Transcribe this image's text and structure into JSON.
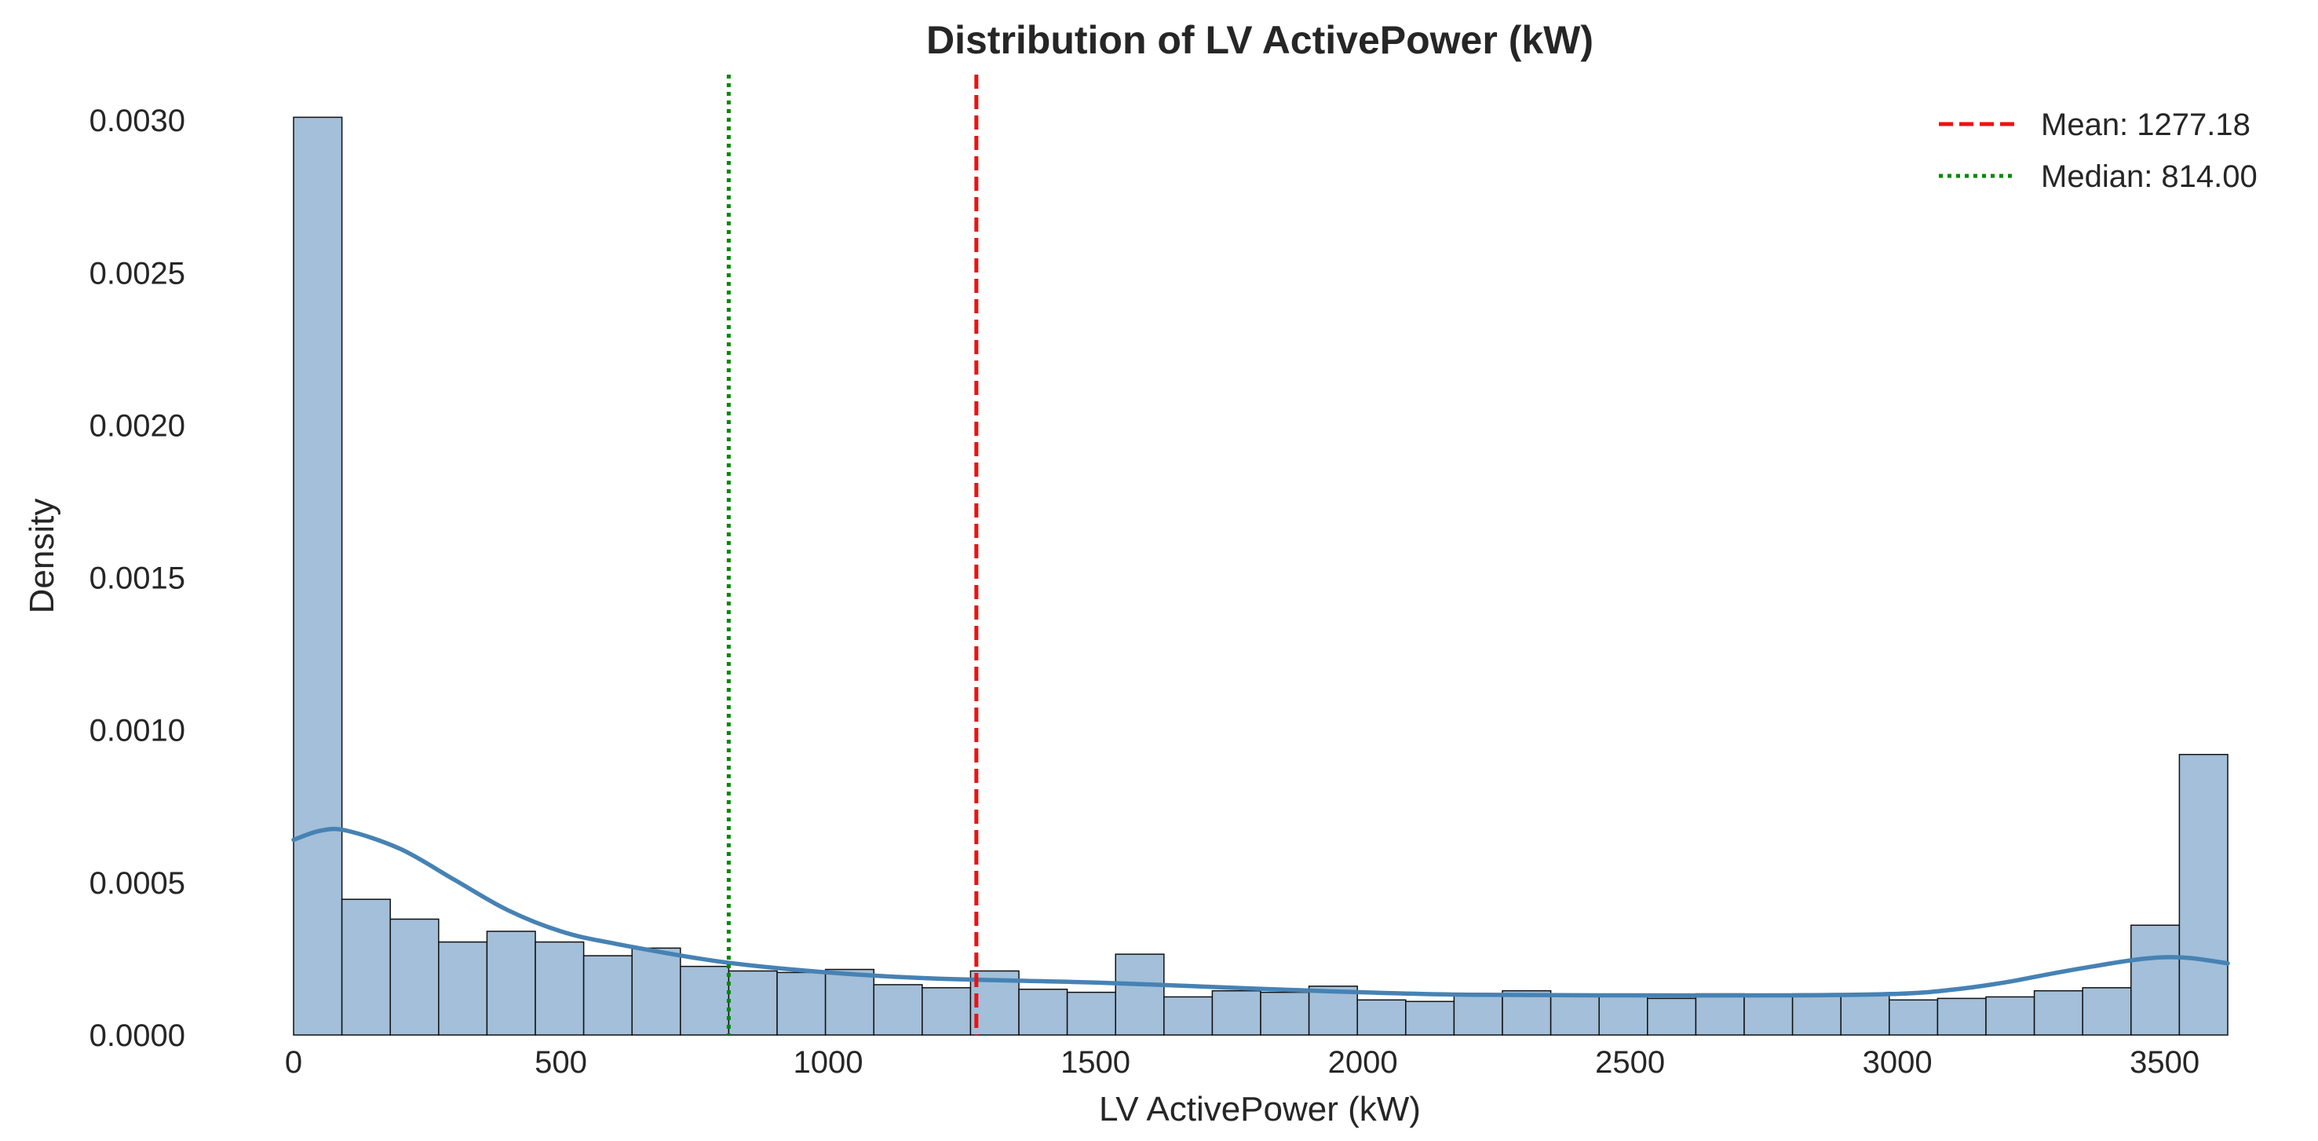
{
  "chart_data": {
    "type": "bar",
    "title": "Distribution of LV ActivePower (kW)",
    "xlabel": "LV ActivePower (kW)",
    "ylabel": "Density",
    "xlim": [
      0,
      3618
    ],
    "ylim": [
      0,
      0.00315
    ],
    "grid": false,
    "legend_position": "top-right",
    "x_ticks": [
      0,
      500,
      1000,
      1500,
      2000,
      2500,
      3000,
      3500
    ],
    "x_tick_labels": [
      "0",
      "500",
      "1000",
      "1500",
      "2000",
      "2500",
      "3000",
      "3500"
    ],
    "y_ticks": [
      0,
      0.0005,
      0.001,
      0.0015,
      0.002,
      0.0025,
      0.003
    ],
    "y_tick_labels": [
      "0.0000",
      "0.0005",
      "0.0010",
      "0.0015",
      "0.0020",
      "0.0025",
      "0.0030"
    ],
    "bin_start": 0,
    "bin_width": 90.45,
    "bin_values": [
      0.00301,
      0.000445,
      0.00038,
      0.000305,
      0.00034,
      0.000305,
      0.00026,
      0.000285,
      0.000225,
      0.00021,
      0.000205,
      0.000215,
      0.000165,
      0.000155,
      0.00021,
      0.00015,
      0.00014,
      0.000265,
      0.000125,
      0.000145,
      0.00014,
      0.00016,
      0.000115,
      0.00011,
      0.00013,
      0.000145,
      0.00013,
      0.00013,
      0.00012,
      0.000135,
      0.00013,
      0.000135,
      0.00013,
      0.000115,
      0.00012,
      0.000125,
      0.000145,
      0.000155,
      0.00036,
      0.00092
    ],
    "kde": {
      "x": [
        0,
        50,
        100,
        200,
        300,
        400,
        500,
        600,
        800,
        1000,
        1200,
        1500,
        1800,
        2000,
        2200,
        2500,
        2800,
        3000,
        3100,
        3200,
        3300,
        3400,
        3450,
        3500,
        3550,
        3618
      ],
      "y": [
        0.00064,
        0.00067,
        0.00067,
        0.00061,
        0.00051,
        0.00041,
        0.00034,
        0.0003,
        0.00024,
        0.000205,
        0.000185,
        0.000172,
        0.000152,
        0.00014,
        0.000132,
        0.00013,
        0.00013,
        0.000135,
        0.000148,
        0.000172,
        0.000205,
        0.000235,
        0.000248,
        0.000255,
        0.000252,
        0.000235
      ]
    },
    "reference_lines": [
      {
        "label": "Mean: 1277.18",
        "value": 1277.18,
        "color": "#ee1111",
        "style": "dashed"
      },
      {
        "label": "Median: 814.00",
        "value": 814.0,
        "color": "#008800",
        "style": "dotted"
      }
    ],
    "colors": {
      "bar_fill": "#a3bfd9",
      "bar_edge": "#111111",
      "kde_line": "#4682b4",
      "text": "#262626"
    }
  }
}
